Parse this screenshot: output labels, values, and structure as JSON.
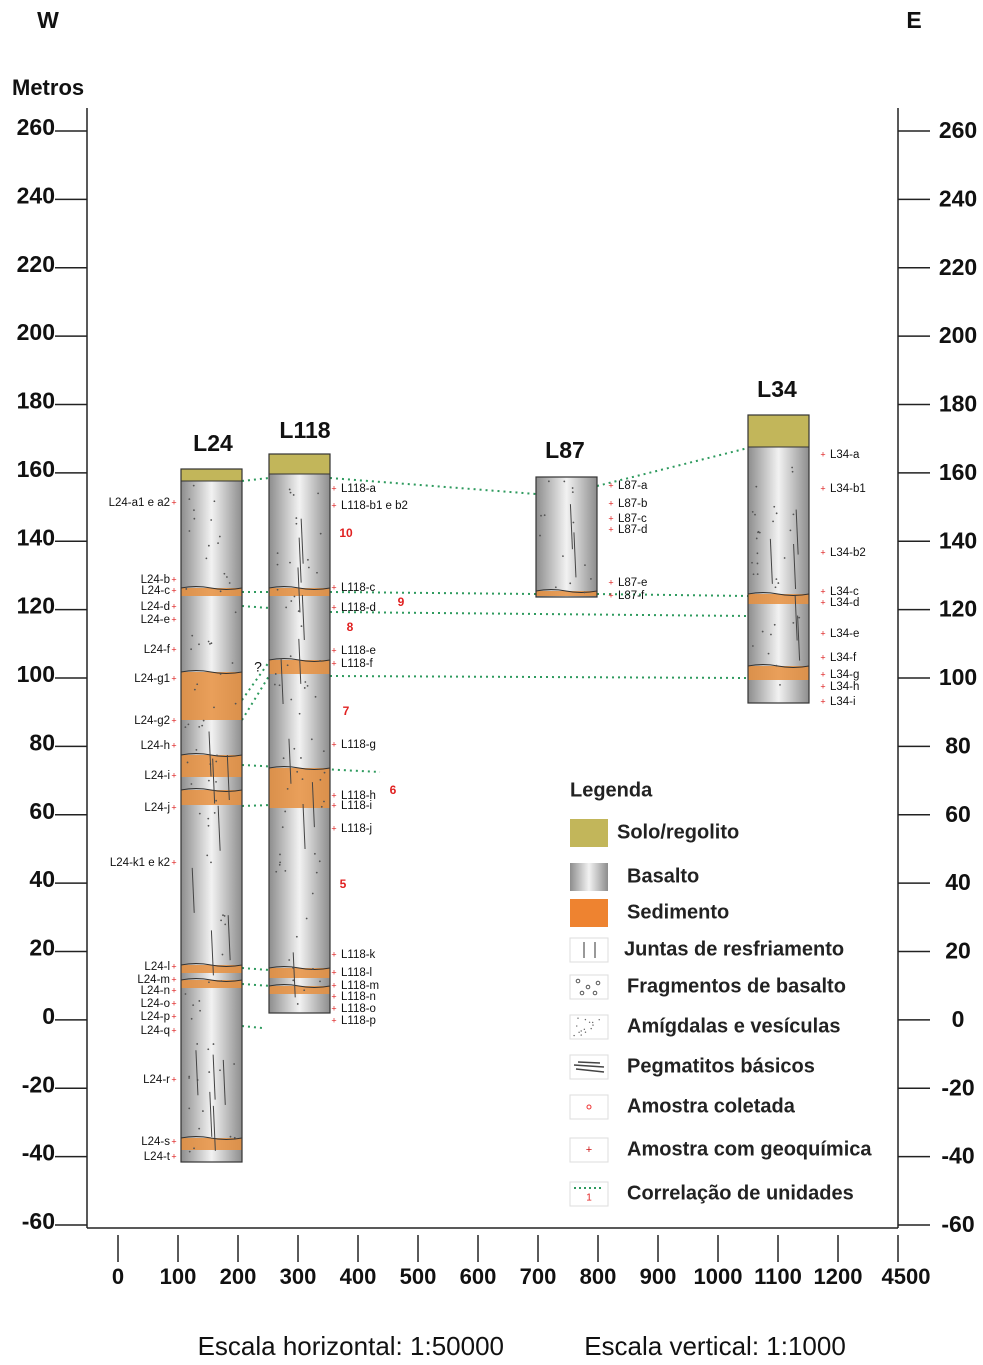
{
  "compass": {
    "west": "W",
    "east": "E"
  },
  "y_axis": {
    "label": "Metros",
    "ticks": [
      260,
      240,
      220,
      200,
      180,
      160,
      140,
      120,
      100,
      80,
      60,
      40,
      20,
      0,
      -20,
      -40,
      -60
    ]
  },
  "x_axis": {
    "ticks": [
      0,
      100,
      200,
      300,
      400,
      500,
      600,
      700,
      800,
      900,
      1000,
      1100,
      1200,
      4500
    ]
  },
  "columns": [
    {
      "name": "L24",
      "samples": [
        "L24-a1 e a2",
        "L24-b",
        "L24-c",
        "L24-d",
        "L24-e",
        "L24-f",
        "L24-g1",
        "L24-g2",
        "L24-h",
        "L24-i",
        "L24-j",
        "L24-k1 e k2",
        "L24-l",
        "L24-m",
        "L24-n",
        "L24-o",
        "L24-p",
        "L24-q",
        "L24-r",
        "L24-s",
        "L24-t"
      ]
    },
    {
      "name": "L118",
      "samples": [
        "L118-a",
        "L118-b1 e b2",
        "L118-c",
        "L118-d",
        "L118-e",
        "L118-f",
        "L118-g",
        "L118-h",
        "L118-i",
        "L118-j",
        "L118-k",
        "L118-l",
        "L118-m",
        "L118-n",
        "L118-o",
        "L118-p"
      ]
    },
    {
      "name": "L87",
      "samples": [
        "L87-a",
        "L87-b",
        "L87-c",
        "L87-d",
        "L87-e",
        "L87-f"
      ]
    },
    {
      "name": "L34",
      "samples": [
        "L34-a",
        "L34-b1",
        "L34-b2",
        "L34-c",
        "L34-d",
        "L34-e",
        "L34-f",
        "L34-g",
        "L34-h",
        "L34-i"
      ]
    }
  ],
  "unit_numbers": [
    10,
    9,
    8,
    7,
    6,
    5
  ],
  "uncertain": "?",
  "legend": {
    "title": "Legenda",
    "items": [
      "Solo/regolito",
      "Basalto",
      "Sedimento",
      "Juntas de resfriamento",
      "Fragmentos de basalto",
      "Amígdalas e vesículas",
      "Pegmatitos básicos",
      "Amostra coletada",
      "Amostra com geoquímica",
      "Correlação de unidades"
    ]
  },
  "scales": {
    "horizontal": "Escala horizontal: 1:50000",
    "vertical": "Escala vertical: 1:1000"
  }
}
